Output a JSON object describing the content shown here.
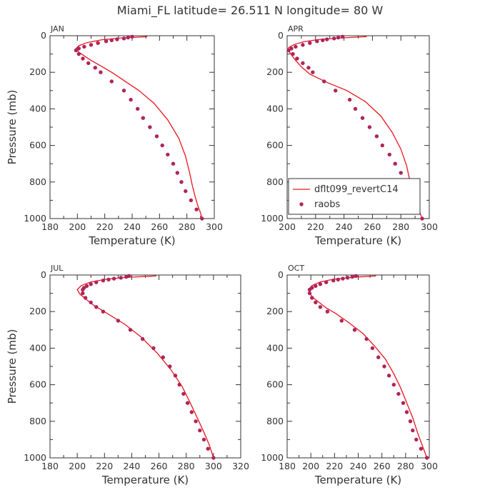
{
  "figure": {
    "title": "Miami_FL   latitude= 26.511 N longitude= 80 W",
    "legend": {
      "model_label": "dflt099_revertC14",
      "obs_label": "raobs",
      "placement": "bottom-right of APR panel"
    },
    "colors": {
      "model": "#e8161c",
      "obs": "#b0245a",
      "axis": "#333333"
    }
  },
  "chart_data": [
    {
      "type": "line",
      "title": "JAN",
      "xlabel": "Temperature (K)",
      "ylabel": "Pressure (mb)",
      "xlim": [
        180,
        300
      ],
      "ylim": [
        1000,
        0
      ],
      "xticks": [
        180,
        200,
        220,
        240,
        260,
        280,
        300
      ],
      "yticks": [
        0,
        200,
        400,
        600,
        800,
        1000
      ],
      "grid": false,
      "series": [
        {
          "name": "dflt099_revertC14",
          "kind": "line",
          "points": [
            [
              251,
              5
            ],
            [
              232,
              12
            ],
            [
              218,
              22
            ],
            [
              207,
              38
            ],
            [
              201,
              55
            ],
            [
              199,
              70
            ],
            [
              201,
              90
            ],
            [
              205,
              110
            ],
            [
              210,
              135
            ],
            [
              217,
              165
            ],
            [
              225,
              200
            ],
            [
              234,
              245
            ],
            [
              245,
              300
            ],
            [
              256,
              370
            ],
            [
              266,
              460
            ],
            [
              274,
              560
            ],
            [
              279,
              660
            ],
            [
              282,
              750
            ],
            [
              284,
              820
            ],
            [
              286,
              880
            ],
            [
              288,
              930
            ],
            [
              290,
              970
            ],
            [
              291,
              1000
            ]
          ]
        },
        {
          "name": "raobs",
          "kind": "scatter",
          "points": [
            [
              240,
              5
            ],
            [
              237,
              10
            ],
            [
              234,
              15
            ],
            [
              229,
              20
            ],
            [
              225,
              25
            ],
            [
              221,
              30
            ],
            [
              215,
              40
            ],
            [
              210,
              50
            ],
            [
              205,
              60
            ],
            [
              201,
              70
            ],
            [
              199,
              80
            ],
            [
              201,
              100
            ],
            [
              204,
              125
            ],
            [
              208,
              150
            ],
            [
              213,
              175
            ],
            [
              217,
              200
            ],
            [
              225,
              250
            ],
            [
              234,
              300
            ],
            [
              239,
              350
            ],
            [
              244,
              400
            ],
            [
              248,
              450
            ],
            [
              253,
              500
            ],
            [
              258,
              550
            ],
            [
              262,
              600
            ],
            [
              266,
              650
            ],
            [
              270,
              700
            ],
            [
              273,
              750
            ],
            [
              276,
              800
            ],
            [
              279,
              850
            ],
            [
              283,
              900
            ],
            [
              287,
              950
            ],
            [
              291,
              1000
            ]
          ]
        }
      ]
    },
    {
      "type": "line",
      "title": "APR",
      "xlabel": "Temperature (K)",
      "ylabel": "",
      "xlim": [
        200,
        300
      ],
      "ylim": [
        1000,
        0
      ],
      "xticks": [
        200,
        220,
        240,
        260,
        280,
        300
      ],
      "yticks": [
        0,
        200,
        400,
        600,
        800,
        1000
      ],
      "grid": false,
      "series": [
        {
          "name": "dflt099_revertC14",
          "kind": "line",
          "points": [
            [
              256,
              5
            ],
            [
              238,
              12
            ],
            [
              223,
              20
            ],
            [
              212,
              32
            ],
            [
              205,
              48
            ],
            [
              201,
              65
            ],
            [
              201,
              82
            ],
            [
              203,
              105
            ],
            [
              206,
              135
            ],
            [
              210,
              170
            ],
            [
              216,
              210
            ],
            [
              228,
              255
            ],
            [
              242,
              300
            ],
            [
              255,
              360
            ],
            [
              266,
              440
            ],
            [
              274,
              530
            ],
            [
              280,
              620
            ],
            [
              284,
              710
            ],
            [
              286,
              780
            ],
            [
              289,
              860
            ],
            [
              292,
              940
            ],
            [
              295,
              1000
            ]
          ]
        },
        {
          "name": "raobs",
          "kind": "scatter",
          "points": [
            [
              239,
              5
            ],
            [
              236,
              10
            ],
            [
              233,
              15
            ],
            [
              228,
              20
            ],
            [
              225,
              25
            ],
            [
              221,
              30
            ],
            [
              216,
              40
            ],
            [
              211,
              50
            ],
            [
              206,
              60
            ],
            [
              203,
              70
            ],
            [
              201,
              80
            ],
            [
              204,
              100
            ],
            [
              207,
              125
            ],
            [
              211,
              150
            ],
            [
              215,
              175
            ],
            [
              218,
              200
            ],
            [
              226,
              250
            ],
            [
              234,
              300
            ],
            [
              244,
              350
            ],
            [
              248,
              400
            ],
            [
              253,
              450
            ],
            [
              258,
              500
            ],
            [
              263,
              550
            ],
            [
              267,
              600
            ],
            [
              272,
              650
            ],
            [
              276,
              700
            ],
            [
              280,
              750
            ],
            [
              283,
              800
            ],
            [
              285,
              850
            ],
            [
              288,
              900
            ],
            [
              292,
              950
            ],
            [
              295,
              1000
            ]
          ]
        }
      ]
    },
    {
      "type": "line",
      "title": "JUL",
      "xlabel": "Temperature (K)",
      "ylabel": "Pressure (mb)",
      "xlim": [
        180,
        320
      ],
      "ylim": [
        1000,
        0
      ],
      "xticks": [
        180,
        200,
        220,
        240,
        260,
        280,
        300,
        320
      ],
      "yticks": [
        0,
        200,
        400,
        600,
        800,
        1000
      ],
      "grid": false,
      "series": [
        {
          "name": "dflt099_revertC14",
          "kind": "line",
          "points": [
            [
              258,
              5
            ],
            [
              238,
              12
            ],
            [
              222,
              22
            ],
            [
              210,
              38
            ],
            [
              203,
              58
            ],
            [
              200,
              80
            ],
            [
              202,
              105
            ],
            [
              206,
              130
            ],
            [
              212,
              165
            ],
            [
              222,
              210
            ],
            [
              235,
              270
            ],
            [
              247,
              340
            ],
            [
              259,
              430
            ],
            [
              269,
              520
            ],
            [
              277,
              610
            ],
            [
              283,
              700
            ],
            [
              288,
              780
            ],
            [
              293,
              860
            ],
            [
              297,
              930
            ],
            [
              300,
              1000
            ]
          ]
        },
        {
          "name": "raobs",
          "kind": "scatter",
          "points": [
            [
              238,
              5
            ],
            [
              236,
              10
            ],
            [
              232,
              15
            ],
            [
              227,
              20
            ],
            [
              223,
              25
            ],
            [
              219,
              30
            ],
            [
              214,
              40
            ],
            [
              210,
              50
            ],
            [
              207,
              60
            ],
            [
              205,
              70
            ],
            [
              204,
              80
            ],
            [
              204,
              100
            ],
            [
              206,
              125
            ],
            [
              210,
              150
            ],
            [
              214,
              175
            ],
            [
              219,
              200
            ],
            [
              230,
              250
            ],
            [
              239,
              300
            ],
            [
              248,
              350
            ],
            [
              256,
              400
            ],
            [
              263,
              450
            ],
            [
              268,
              500
            ],
            [
              272,
              550
            ],
            [
              275,
              600
            ],
            [
              278,
              650
            ],
            [
              281,
              700
            ],
            [
              284,
              750
            ],
            [
              287,
              800
            ],
            [
              290,
              850
            ],
            [
              293,
              900
            ],
            [
              296,
              950
            ],
            [
              300,
              1000
            ]
          ]
        }
      ]
    },
    {
      "type": "line",
      "title": "OCT",
      "xlabel": "Temperature (K)",
      "ylabel": "",
      "xlim": [
        180,
        300
      ],
      "ylim": [
        1000,
        0
      ],
      "xticks": [
        180,
        200,
        220,
        240,
        260,
        280,
        300
      ],
      "yticks": [
        0,
        200,
        400,
        600,
        800,
        1000
      ],
      "grid": false,
      "series": [
        {
          "name": "dflt099_revertC14",
          "kind": "line",
          "points": [
            [
              255,
              5
            ],
            [
              236,
              12
            ],
            [
              220,
              22
            ],
            [
              208,
              38
            ],
            [
              201,
              58
            ],
            [
              198,
              80
            ],
            [
              199,
              100
            ],
            [
              202,
              125
            ],
            [
              207,
              150
            ],
            [
              213,
              180
            ],
            [
              221,
              210
            ],
            [
              232,
              260
            ],
            [
              244,
              320
            ],
            [
              254,
              390
            ],
            [
              263,
              460
            ],
            [
              270,
              540
            ],
            [
              276,
              620
            ],
            [
              281,
              700
            ],
            [
              286,
              780
            ],
            [
              290,
              860
            ],
            [
              294,
              930
            ],
            [
              298,
              1000
            ]
          ]
        },
        {
          "name": "raobs",
          "kind": "scatter",
          "points": [
            [
              238,
              5
            ],
            [
              235,
              10
            ],
            [
              231,
              15
            ],
            [
              227,
              20
            ],
            [
              223,
              25
            ],
            [
              219,
              30
            ],
            [
              213,
              40
            ],
            [
              208,
              50
            ],
            [
              204,
              60
            ],
            [
              201,
              70
            ],
            [
              199,
              80
            ],
            [
              199,
              100
            ],
            [
              201,
              125
            ],
            [
              204,
              150
            ],
            [
              208,
              175
            ],
            [
              214,
              200
            ],
            [
              226,
              250
            ],
            [
              237,
              300
            ],
            [
              247,
              350
            ],
            [
              252,
              400
            ],
            [
              257,
              450
            ],
            [
              262,
              500
            ],
            [
              266,
              550
            ],
            [
              270,
              600
            ],
            [
              274,
              650
            ],
            [
              278,
              700
            ],
            [
              281,
              750
            ],
            [
              284,
              800
            ],
            [
              286,
              850
            ],
            [
              289,
              900
            ],
            [
              293,
              950
            ],
            [
              298,
              1000
            ]
          ]
        }
      ]
    }
  ]
}
